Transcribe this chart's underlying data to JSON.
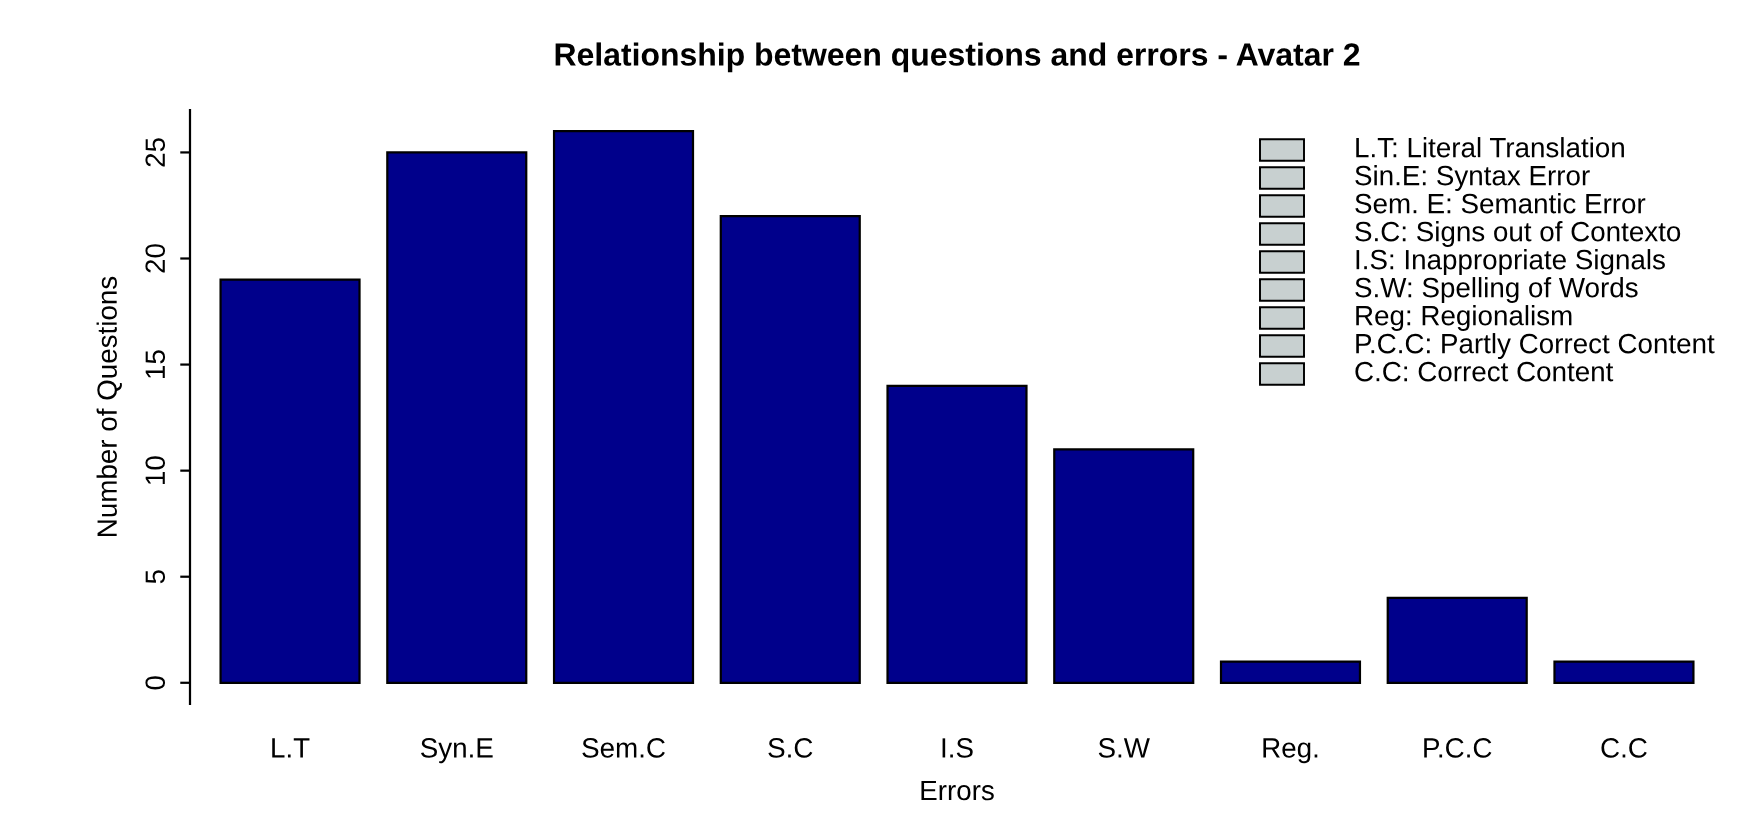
{
  "chart_data": {
    "type": "bar",
    "title": "Relationship between questions and errors - Avatar 2",
    "xlabel": "Errors",
    "ylabel": "Number of Questions",
    "categories": [
      "L.T",
      "Syn.E",
      "Sem.C",
      "S.C",
      "I.S",
      "S.W",
      "Reg.",
      "P.C.C",
      "C.C"
    ],
    "values": [
      19,
      25,
      26,
      22,
      14,
      11,
      1,
      4,
      1
    ],
    "color": "#00008b",
    "ylim": [
      -1,
      27
    ],
    "yticks": [
      0,
      5,
      10,
      15,
      20,
      25
    ],
    "grid": false,
    "annotations": [
      "L.T: Literal Translation",
      "Sin.E: Syntax Error",
      "Sem. E: Semantic Error",
      "S.C: Signs out of Contexto",
      "I.S: Inappropriate Signals",
      "S.W: Spelling of Words",
      "Reg: Regionalism",
      "P.C.C: Partly Correct Content",
      "C.C: Correct Content"
    ]
  }
}
